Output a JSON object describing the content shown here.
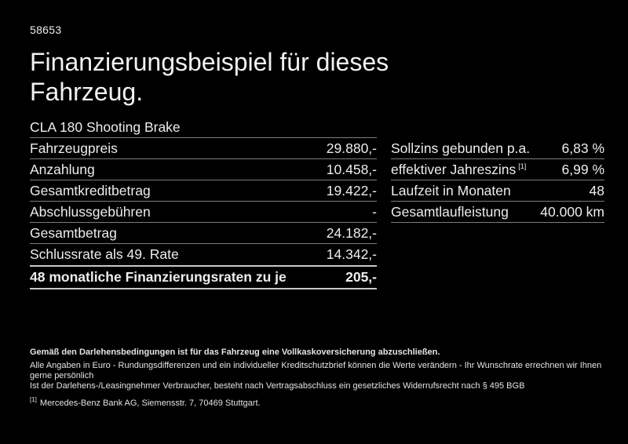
{
  "page": {
    "doc_number": "58653",
    "title": "Finanzierungsbeispiel für dieses Fahrzeug."
  },
  "colors": {
    "background": "#000000",
    "text": "#ededed",
    "divider": "#7d7d7d",
    "emphasis_divider": "#c9c9c9"
  },
  "left_table": {
    "header": "CLA 180 Shooting Brake",
    "rows": [
      {
        "label": "Fahrzeugpreis",
        "value": "29.880,-"
      },
      {
        "label": "Anzahlung",
        "value": "10.458,-"
      },
      {
        "label": "Gesamtkreditbetrag",
        "value": "19.422,-"
      },
      {
        "label": "Abschlussgebühren",
        "value": "-"
      },
      {
        "label": "Gesamtbetrag",
        "value": "24.182,-"
      },
      {
        "label": "Schlussrate als 49. Rate",
        "value": "14.342,-"
      },
      {
        "label": "48 monatliche Finanzierungsraten zu je",
        "value": "205,-"
      }
    ]
  },
  "right_table": {
    "rows": [
      {
        "label": "Sollzins gebunden p.a.",
        "value": "6,83 %"
      },
      {
        "label": "effektiver Jahreszins",
        "footnote_marker": "[1]",
        "value": "6,99 %"
      },
      {
        "label": "Laufzeit in Monaten",
        "value": "48"
      },
      {
        "label": "Gesamtlaufleistung",
        "value": "40.000 km"
      }
    ]
  },
  "footer": {
    "line1": "Gemäß den Darlehensbedingungen ist für das Fahrzeug eine Vollkaskoversicherung abzuschließen.",
    "line2": "Alle Angaben in Euro - Rundungsdifferenzen und ein individueller Kreditschutzbrief können die Werte verändern - Ihr Wunschrate errechnen wir Ihnen gerne persönlich",
    "line3": "Ist der Darlehens-/Leasingnehmer Verbraucher, besteht nach Vertragsabschluss ein gesetzliches Widerrufsrecht nach § 495 BGB",
    "footnote_marker": "[1]",
    "footnote_text": "Mercedes-Benz Bank AG, Siemensstr. 7, 70469 Stuttgart."
  }
}
